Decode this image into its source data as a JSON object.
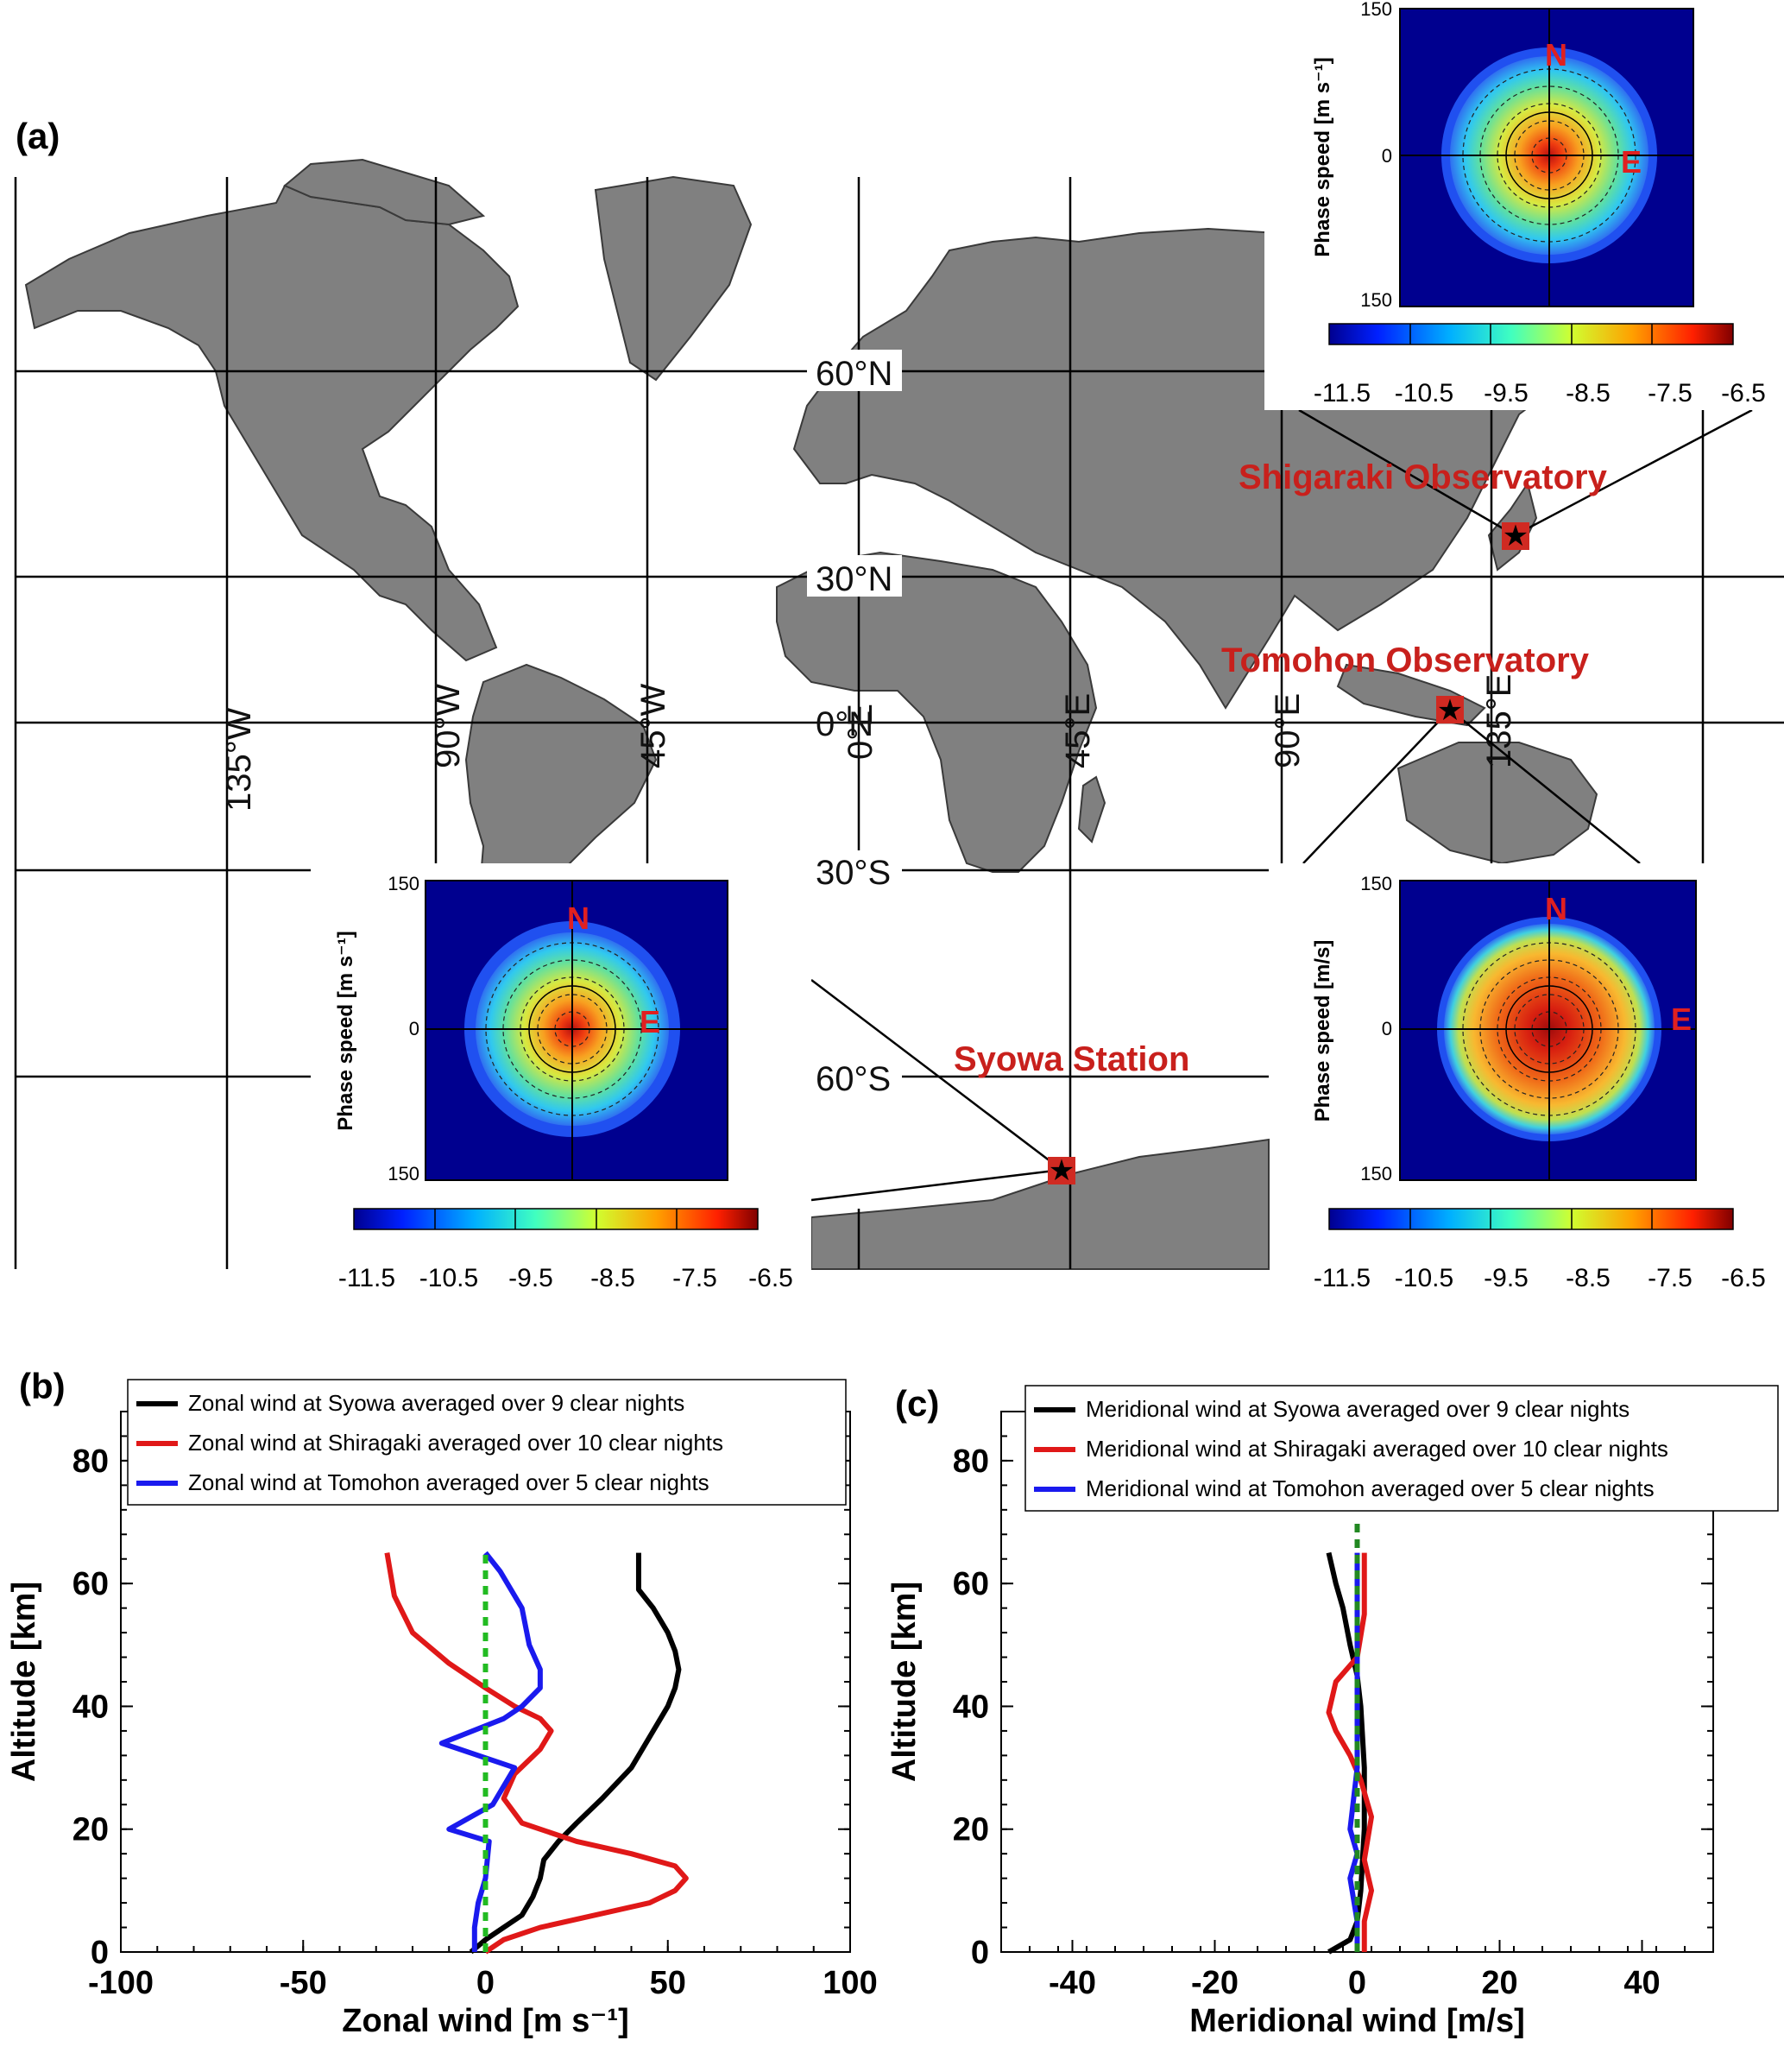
{
  "panels": {
    "a_label": "(a)",
    "b_label": "(b)",
    "c_label": "(c)"
  },
  "map": {
    "lat_labels": [
      "60°N",
      "30°N",
      "0°N",
      "30°S",
      "60°S"
    ],
    "lon_labels": [
      "135°W",
      "90°W",
      "45°W",
      "0°E",
      "45°E",
      "90°E",
      "135°E"
    ],
    "sites": [
      "Shigaraki Observatory",
      "Tomohon Observatory",
      "Syowa Station"
    ],
    "colors": {
      "land": "#808080",
      "site_text": "#c8201c",
      "marker": "#d02a22"
    }
  },
  "insets": {
    "ylabel_units_ms1": "Phase speed [m s⁻¹]",
    "ylabel_units_ms": "Phase speed [m/s]",
    "yticks": [
      "150",
      "0",
      "150"
    ],
    "north": "N",
    "east": "E",
    "colorbar_ticks": [
      "-11.5",
      "-10.5",
      "-9.5",
      "-8.5",
      "-7.5",
      "-6.5"
    ]
  },
  "chart_data": [
    {
      "type": "line",
      "panel": "(b)",
      "xlabel": "Zonal wind [m s⁻¹]",
      "ylabel": "Altitude [km]",
      "xlim": [
        -100,
        100
      ],
      "ylim": [
        0,
        88
      ],
      "xticks": [
        "-100",
        "-50",
        "0",
        "50",
        "100"
      ],
      "yticks": [
        "0",
        "20",
        "40",
        "60",
        "80"
      ],
      "legend_position": "top",
      "series": [
        {
          "name": "Zonal wind at Syowa averaged over 9 clear nights",
          "color": "#000000",
          "x": [
            -4,
            0,
            5,
            10,
            13,
            15,
            16,
            20,
            25,
            32,
            40,
            45,
            50,
            52,
            53,
            52,
            50,
            46,
            42,
            42
          ],
          "y": [
            0,
            2,
            4,
            6,
            9,
            12,
            15,
            18,
            21,
            25,
            30,
            35,
            40,
            43,
            46,
            49,
            52,
            56,
            59,
            65
          ]
        },
        {
          "name": "Zonal wind at Shiragaki averaged over 10 clear nights",
          "color": "#e01818",
          "x": [
            0,
            5,
            15,
            30,
            45,
            52,
            55,
            52,
            40,
            25,
            10,
            5,
            8,
            15,
            18,
            15,
            8,
            0,
            -10,
            -20,
            -25,
            -27
          ],
          "y": [
            0,
            2,
            4,
            6,
            8,
            10,
            12,
            14,
            16,
            18,
            21,
            25,
            29,
            33,
            36,
            38,
            40,
            43,
            47,
            52,
            58,
            65
          ]
        },
        {
          "name": "Zonal wind at Tomohon averaged over 5 clear nights",
          "color": "#1a1aee",
          "x": [
            -3,
            -3,
            -2,
            0,
            1,
            -10,
            2,
            8,
            -12,
            5,
            10,
            15,
            15,
            12,
            10,
            4,
            0
          ],
          "y": [
            0,
            4,
            8,
            12,
            18,
            20,
            24,
            30,
            34,
            38,
            40,
            43,
            46,
            50,
            56,
            62,
            65
          ]
        },
        {
          "name": "zero reference",
          "color": "#22bb22",
          "dashed": true,
          "x": [
            0,
            0
          ],
          "y": [
            0,
            65
          ]
        }
      ]
    },
    {
      "type": "line",
      "panel": "(c)",
      "xlabel": "Meridional wind [m/s]",
      "ylabel": "Altitude [km]",
      "xlim": [
        -50,
        50
      ],
      "ylim": [
        0,
        88
      ],
      "xticks": [
        "-40",
        "-20",
        "0",
        "20",
        "40"
      ],
      "yticks": [
        "0",
        "20",
        "40",
        "60",
        "80"
      ],
      "legend_position": "top",
      "series": [
        {
          "name": "Meridional wind at Syowa averaged over 9 clear nights",
          "color": "#000000",
          "x": [
            -4,
            -1,
            0,
            0.5,
            1,
            1,
            0.5,
            0,
            -1,
            -2,
            -3,
            -4
          ],
          "y": [
            0,
            2,
            5,
            10,
            20,
            30,
            40,
            45,
            50,
            56,
            60,
            65
          ]
        },
        {
          "name": "Meridional wind at Shiragaki averaged over 10 clear nights",
          "color": "#e01818",
          "x": [
            1,
            1,
            2,
            1,
            2,
            0.5,
            -1,
            -3,
            -4,
            -3,
            0,
            1,
            1
          ],
          "y": [
            0,
            5,
            10,
            15,
            22,
            28,
            32,
            36,
            39,
            44,
            48,
            55,
            65
          ]
        },
        {
          "name": "Meridional wind at Tomohon averaged over 5 clear nights",
          "color": "#1a1aee",
          "x": [
            0,
            0,
            -1,
            0,
            -1,
            0,
            0,
            0
          ],
          "y": [
            0,
            5,
            12,
            16,
            20,
            30,
            40,
            65
          ]
        },
        {
          "name": "zero reference",
          "color": "#228822",
          "dashed": true,
          "x": [
            0,
            0
          ],
          "y": [
            0,
            70
          ]
        }
      ]
    }
  ]
}
